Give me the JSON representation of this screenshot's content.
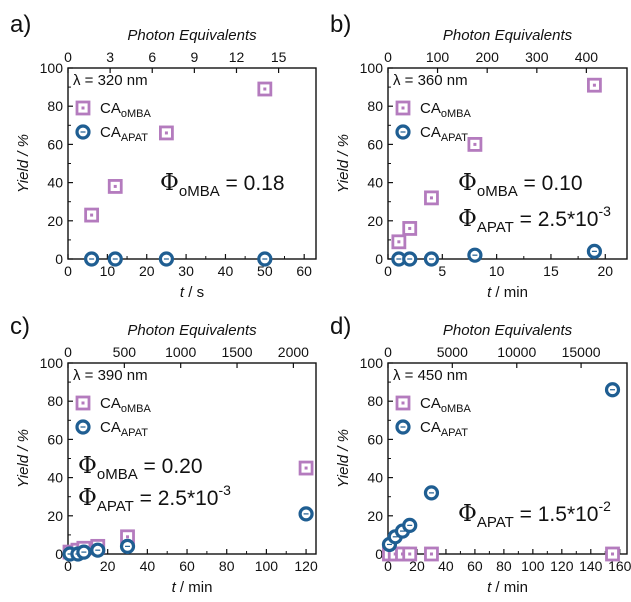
{
  "colors": {
    "oMBA": "#b47bbe",
    "APAT": "#1f5e92",
    "axis": "#111111"
  },
  "chart_data": [
    {
      "type": "scatter",
      "panel_label": "a)",
      "wavelength_label": "λ = 320 nm",
      "xlabel_var": "t",
      "xlabel_unit": " / s",
      "ylabel": "Yield / %",
      "top_axis_label": "Photon Equivalents",
      "xlim": [
        0,
        63
      ],
      "ylim": [
        0,
        100
      ],
      "x_ticks": [
        "0",
        "10",
        "20",
        "30",
        "40",
        "50",
        "60"
      ],
      "y_ticks": [
        "0",
        "20",
        "40",
        "60",
        "80",
        "100"
      ],
      "top_ticks": [
        {
          "label": "0",
          "x": 0
        },
        {
          "label": "3",
          "x": 10.7
        },
        {
          "label": "6",
          "x": 21.4
        },
        {
          "label": "9",
          "x": 32.1
        },
        {
          "label": "12",
          "x": 42.8
        },
        {
          "label": "15",
          "x": 53.5
        }
      ],
      "legend": {
        "a_base": "CA",
        "a_sub": "oMBA",
        "b_base": "CA",
        "b_sub": "APAT"
      },
      "annotations": [
        {
          "series": "oMBA",
          "sym": "Φ",
          "sub": "oMBA",
          "text": " = 0.18",
          "exp": "",
          "row": 0
        }
      ],
      "series": [
        {
          "key": "oMBA",
          "marker": "square",
          "x": [
            6,
            12,
            25,
            50
          ],
          "y": [
            23,
            38,
            66,
            89
          ]
        },
        {
          "key": "APAT",
          "marker": "circle",
          "x": [
            6,
            12,
            25,
            50
          ],
          "y": [
            0,
            0,
            0,
            0
          ]
        }
      ]
    },
    {
      "type": "scatter",
      "panel_label": "b)",
      "wavelength_label": "λ = 360 nm",
      "xlabel_var": "t",
      "xlabel_unit": " / min",
      "ylabel": "Yield / %",
      "top_axis_label": "Photon Equivalents",
      "xlim": [
        0,
        22
      ],
      "ylim": [
        0,
        100
      ],
      "x_ticks": [
        "0",
        "5",
        "10",
        "15",
        "20"
      ],
      "y_ticks": [
        "0",
        "20",
        "40",
        "60",
        "80",
        "100"
      ],
      "top_ticks": [
        {
          "label": "0",
          "x": 0
        },
        {
          "label": "100",
          "x": 4.56
        },
        {
          "label": "200",
          "x": 9.13
        },
        {
          "label": "300",
          "x": 13.7
        },
        {
          "label": "400",
          "x": 18.26
        }
      ],
      "legend": {
        "a_base": "CA",
        "a_sub": "oMBA",
        "b_base": "CA",
        "b_sub": "APAT"
      },
      "annotations": [
        {
          "series": "oMBA",
          "sym": "Φ",
          "sub": "oMBA",
          "text": " = 0.10",
          "exp": "",
          "row": 0
        },
        {
          "series": "APAT",
          "sym": "Φ",
          "sub": "APAT",
          "text": " = 2.5*10",
          "exp": "-3",
          "row": 1
        }
      ],
      "series": [
        {
          "key": "oMBA",
          "marker": "square",
          "x": [
            1,
            2,
            4,
            8,
            19
          ],
          "y": [
            9,
            16,
            32,
            60,
            91
          ]
        },
        {
          "key": "APAT",
          "marker": "circle",
          "x": [
            1,
            2,
            4,
            8,
            19
          ],
          "y": [
            0,
            0,
            0,
            2,
            4
          ]
        }
      ]
    },
    {
      "type": "scatter",
      "panel_label": "c)",
      "wavelength_label": "λ = 390 nm",
      "xlabel_var": "t",
      "xlabel_unit": " / min",
      "ylabel": "Yield / %",
      "top_axis_label": "Photon Equivalents",
      "xlim": [
        0,
        125
      ],
      "ylim": [
        0,
        100
      ],
      "x_ticks": [
        "0",
        "20",
        "40",
        "60",
        "80",
        "100",
        "120"
      ],
      "y_ticks": [
        "0",
        "20",
        "40",
        "60",
        "80",
        "100"
      ],
      "top_ticks": [
        {
          "label": "0",
          "x": 0
        },
        {
          "label": "500",
          "x": 28.4
        },
        {
          "label": "1000",
          "x": 56.8
        },
        {
          "label": "1500",
          "x": 85.2
        },
        {
          "label": "2000",
          "x": 113.6
        }
      ],
      "legend": {
        "a_base": "CA",
        "a_sub": "oMBA",
        "b_base": "CA",
        "b_sub": "APAT"
      },
      "annotations": [
        {
          "series": "oMBA",
          "sym": "Φ",
          "sub": "oMBA",
          "text": " = 0.20",
          "exp": "",
          "row": 0
        },
        {
          "series": "APAT",
          "sym": "Φ",
          "sub": "APAT",
          "text": " = 2.5*10",
          "exp": "-3",
          "row": 1
        }
      ],
      "series": [
        {
          "key": "oMBA",
          "marker": "square",
          "x": [
            1,
            5,
            8,
            15,
            30,
            120
          ],
          "y": [
            1,
            2,
            3,
            4,
            9,
            45
          ]
        },
        {
          "key": "APAT",
          "marker": "circle",
          "x": [
            1,
            5,
            8,
            15,
            30,
            120
          ],
          "y": [
            0,
            0,
            1,
            2,
            4,
            21
          ]
        }
      ]
    },
    {
      "type": "scatter",
      "panel_label": "d)",
      "wavelength_label": "λ = 450 nm",
      "xlabel_var": "t",
      "xlabel_unit": " / min",
      "ylabel": "Yield / %",
      "top_axis_label": "Photon Equivalents",
      "xlim": [
        0,
        165
      ],
      "ylim": [
        0,
        100
      ],
      "x_ticks": [
        "0",
        "20",
        "40",
        "60",
        "80",
        "100",
        "120",
        "140",
        "160"
      ],
      "y_ticks": [
        "0",
        "20",
        "40",
        "60",
        "80",
        "100"
      ],
      "top_ticks": [
        {
          "label": "0",
          "x": 0
        },
        {
          "label": "5000",
          "x": 44.4
        },
        {
          "label": "10000",
          "x": 88.9
        },
        {
          "label": "15000",
          "x": 133.3
        }
      ],
      "legend": {
        "a_base": "CA",
        "a_sub": "oMBA",
        "b_base": "CA",
        "b_sub": "APAT"
      },
      "annotations": [
        {
          "series": "APAT",
          "sym": "Φ",
          "sub": "APAT",
          "text": " = 1.5*10",
          "exp": "-2",
          "row": 1
        }
      ],
      "series": [
        {
          "key": "oMBA",
          "marker": "square",
          "x": [
            1,
            5,
            10,
            15,
            30,
            155
          ],
          "y": [
            0,
            0,
            0,
            0,
            0,
            0
          ]
        },
        {
          "key": "APAT",
          "marker": "circle",
          "x": [
            1,
            5,
            10,
            15,
            30,
            155
          ],
          "y": [
            5,
            9,
            12,
            15,
            32,
            86
          ]
        }
      ]
    }
  ]
}
